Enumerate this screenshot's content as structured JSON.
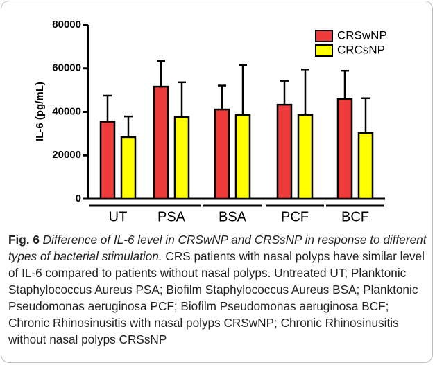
{
  "chart_data": {
    "type": "bar",
    "ylabel": "IL-6 (pg/mL)",
    "categories": [
      "UT",
      "PSA",
      "BSA",
      "PCF",
      "BCF"
    ],
    "series": [
      {
        "name": "CRSwNP",
        "color": "#ee3b3b",
        "values": [
          35500,
          51600,
          41100,
          43300,
          45900
        ],
        "errors": [
          12000,
          11800,
          11000,
          11000,
          13000
        ]
      },
      {
        "name": "CRCsNP",
        "color": "#ffff00",
        "values": [
          28400,
          37600,
          38500,
          38500,
          30300
        ],
        "errors": [
          9500,
          16000,
          23000,
          21000,
          16000
        ]
      }
    ],
    "ylim": [
      0,
      80000
    ],
    "yticks": [
      0,
      20000,
      40000,
      60000,
      80000
    ],
    "legend": "upper right"
  },
  "caption": {
    "label": "Fig. 6",
    "title": "Difference of IL-6 level in CRSwNP and CRSsNP in response to different types of bacterial stimulation.",
    "text": "CRS patients with nasal polyps have similar level of IL-6 compared to patients without nasal polyps. Untreated UT; Planktonic Staphylococcus Aureus PSA; Biofilm Staphylococcus Aureus BSA; Planktonic Pseudomonas aeruginosa PCF; Biofilm Pseudomonas aeruginosa BCF; Chronic Rhinosinusitis with nasal polyps CRSwNP; Chronic Rhinosinusitis without nasal polyps CRSsNP"
  }
}
